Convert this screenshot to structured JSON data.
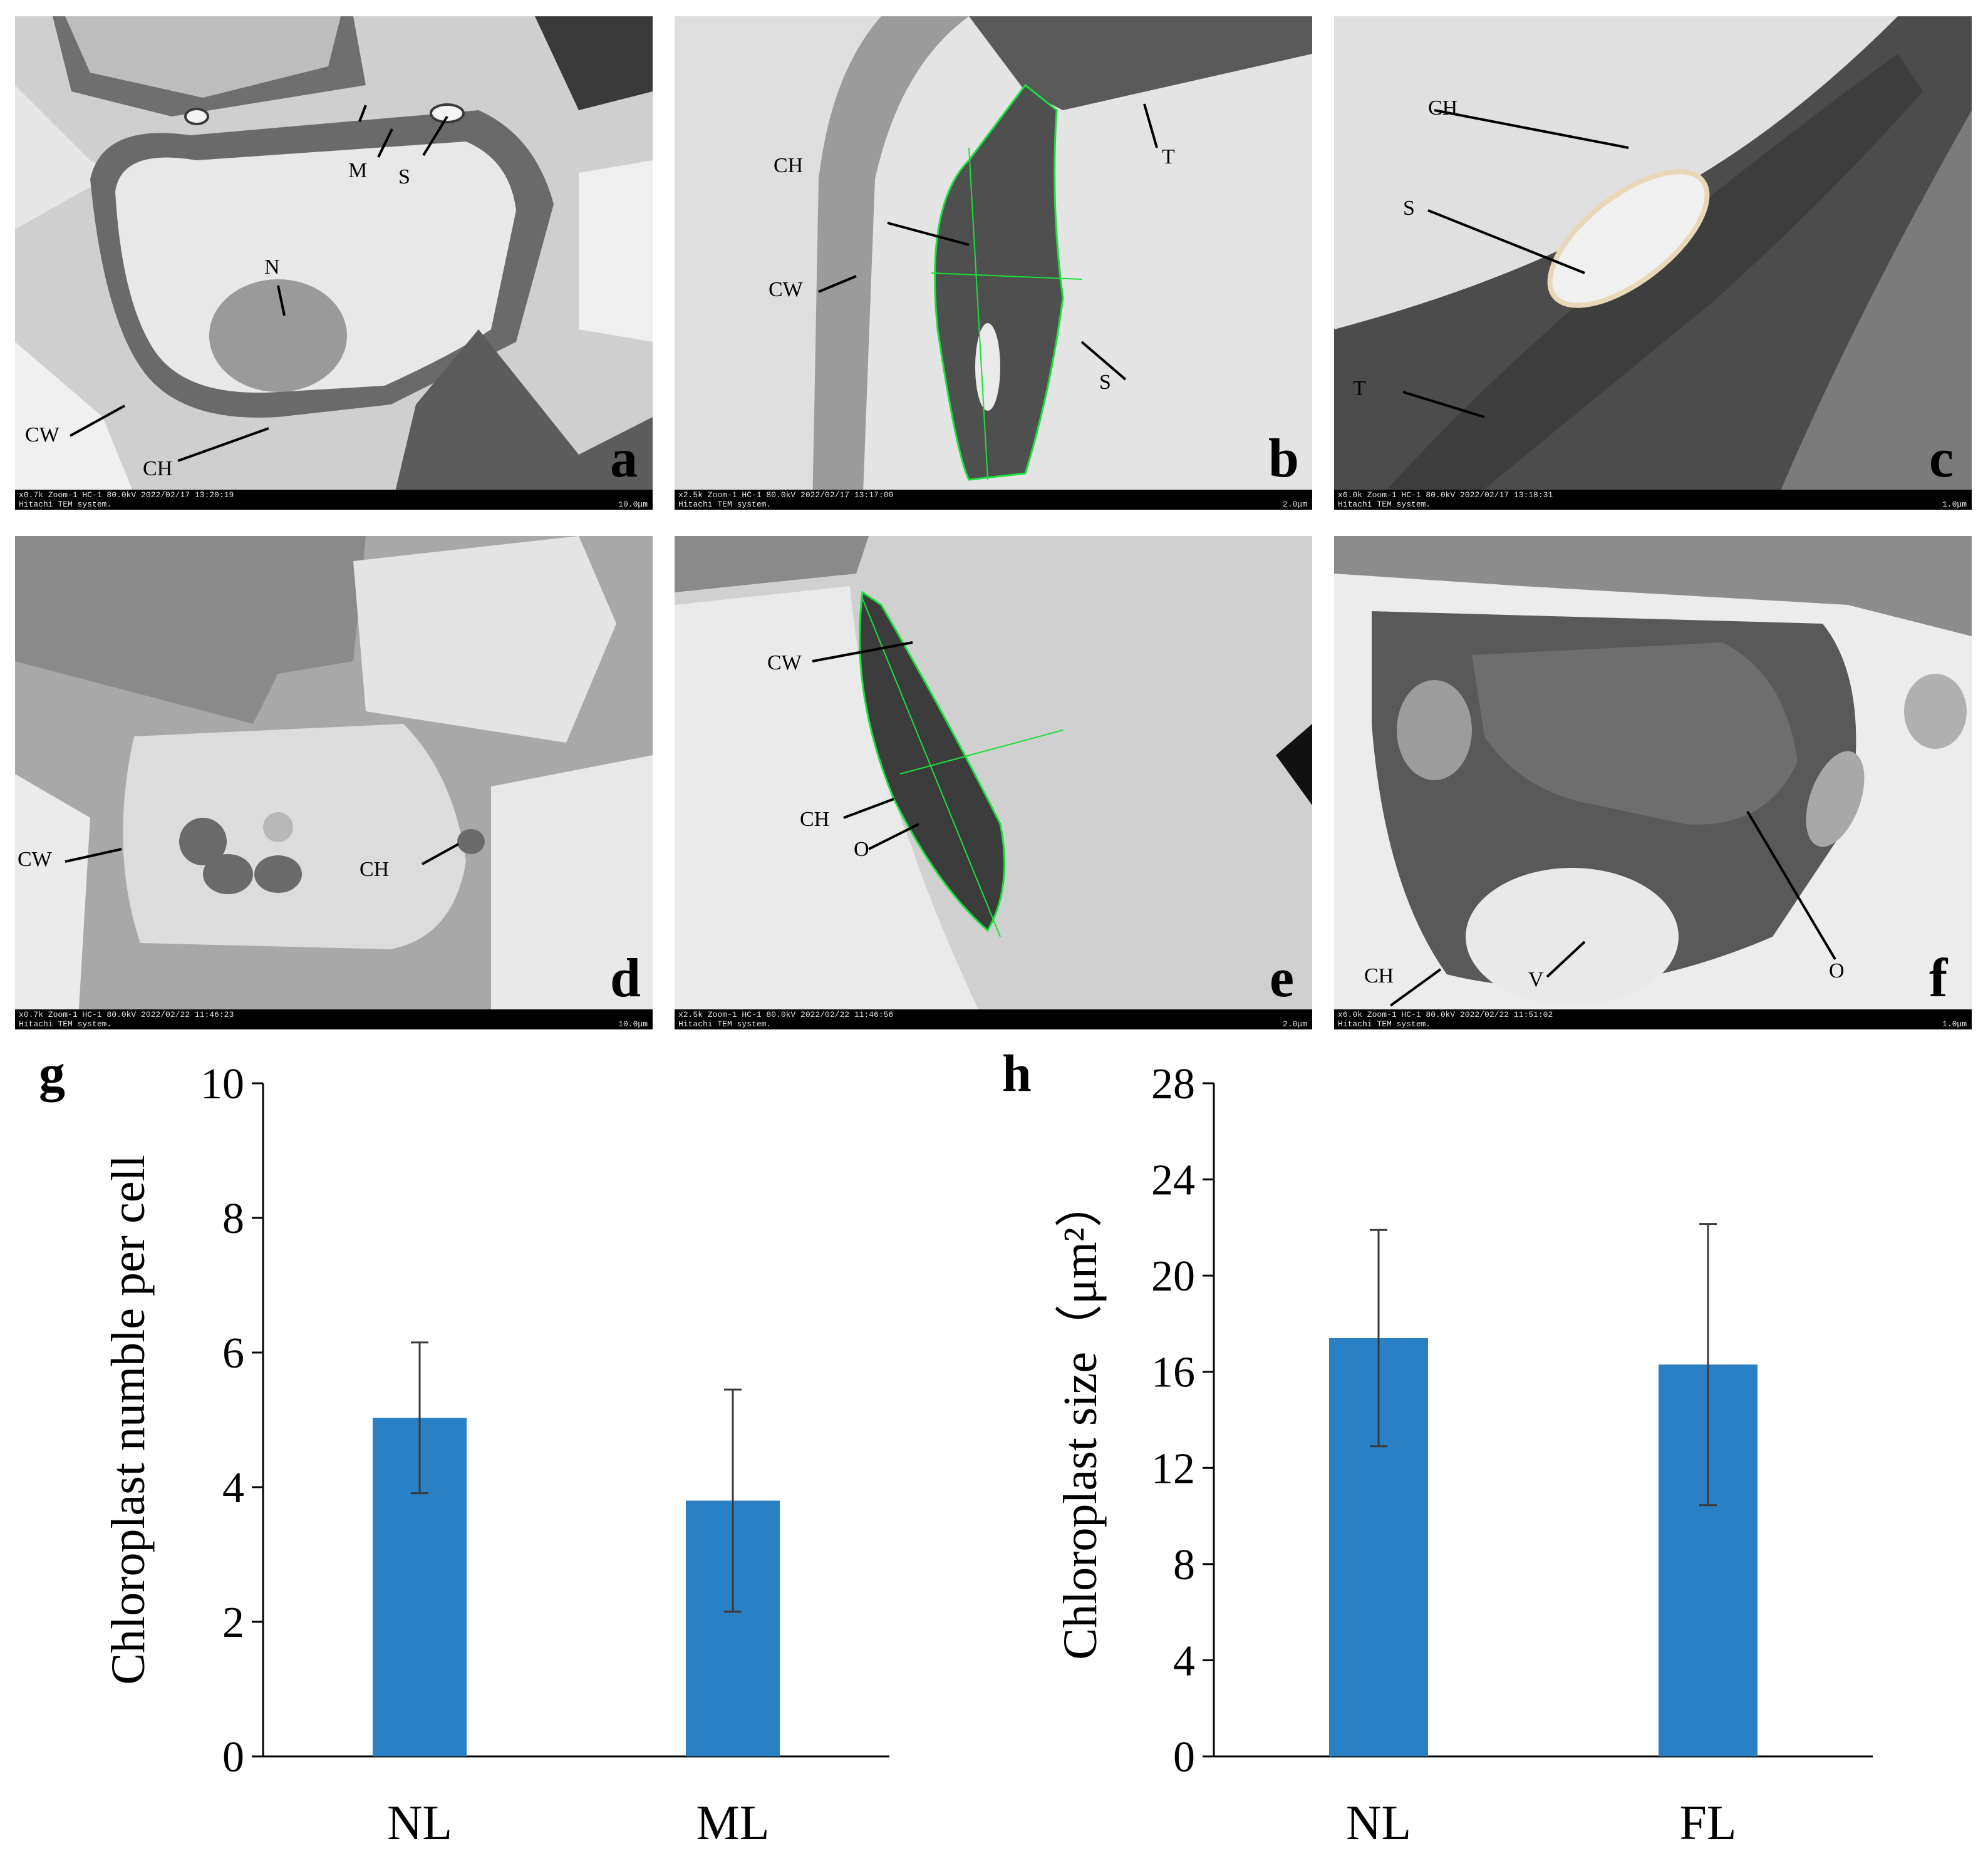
{
  "colors": {
    "bar": "#2980c4",
    "error": "#3a3a3a",
    "axis": "#000000",
    "contour": "#19e03c"
  },
  "panels": [
    {
      "letter": "a",
      "infobar": {
        "line1": "x0.7k Zoom-1 HC-1 80.0kV 2022/02/17 13:20:19",
        "line2": "Hitachi TEM system.",
        "scale": "10.0μm"
      },
      "labels": [
        {
          "text": "M"
        },
        {
          "text": "S"
        },
        {
          "text": "N"
        },
        {
          "text": "CW"
        },
        {
          "text": "CH"
        }
      ]
    },
    {
      "letter": "b",
      "infobar": {
        "line1": "x2.5k Zoom-1 HC-1 80.0kV 2022/02/17 13:17:00",
        "line2": "Hitachi TEM system.",
        "scale": "2.0μm"
      },
      "labels": [
        {
          "text": "CH"
        },
        {
          "text": "CW"
        },
        {
          "text": "T"
        },
        {
          "text": "S"
        }
      ]
    },
    {
      "letter": "c",
      "infobar": {
        "line1": "x6.0k Zoom-1 HC-1 80.0kV 2022/02/17 13:18:31",
        "line2": "Hitachi TEM system.",
        "scale": "1.0μm"
      },
      "labels": [
        {
          "text": "CH"
        },
        {
          "text": "S"
        },
        {
          "text": "T"
        }
      ]
    },
    {
      "letter": "d",
      "infobar": {
        "line1": "x0.7k Zoom-1 HC-1 80.0kV 2022/02/22 11:46:23",
        "line2": "Hitachi TEM system.",
        "scale": "10.0μm"
      },
      "labels": [
        {
          "text": "CW"
        },
        {
          "text": "CH"
        }
      ]
    },
    {
      "letter": "e",
      "infobar": {
        "line1": "x2.5k Zoom-1 HC-1 80.0kV 2022/02/22 11:46:56",
        "line2": "Hitachi TEM system.",
        "scale": "2.0μm"
      },
      "labels": [
        {
          "text": "CW"
        },
        {
          "text": "CH"
        },
        {
          "text": "O"
        }
      ]
    },
    {
      "letter": "f",
      "infobar": {
        "line1": "x6.0k Zoom-1 HC-1 80.0kV 2022/02/22 11:51:02",
        "line2": "Hitachi TEM system.",
        "scale": "1.0μm"
      },
      "labels": [
        {
          "text": "CH"
        },
        {
          "text": "V"
        },
        {
          "text": "O"
        }
      ]
    }
  ],
  "chart_data": [
    {
      "panel": "g",
      "type": "bar",
      "categories": [
        "NL",
        "ML"
      ],
      "values": [
        5.03,
        3.8
      ],
      "error": [
        1.12,
        1.65
      ],
      "ylabel": "Chloroplast numble per cell",
      "xlabel": "",
      "ylim": [
        0,
        10
      ],
      "yticks": [
        "0",
        "2",
        "4",
        "6",
        "8",
        "10"
      ],
      "grid": false
    },
    {
      "panel": "h",
      "type": "bar",
      "categories": [
        "NL",
        "FL"
      ],
      "values": [
        17.4,
        16.3
      ],
      "error": [
        4.5,
        5.85
      ],
      "ylabel": "Chloroplast size（μm²）",
      "xlabel": "",
      "ylim": [
        0,
        28
      ],
      "yticks": [
        "0",
        "4",
        "8",
        "12",
        "16",
        "20",
        "24",
        "28"
      ],
      "grid": false
    }
  ]
}
